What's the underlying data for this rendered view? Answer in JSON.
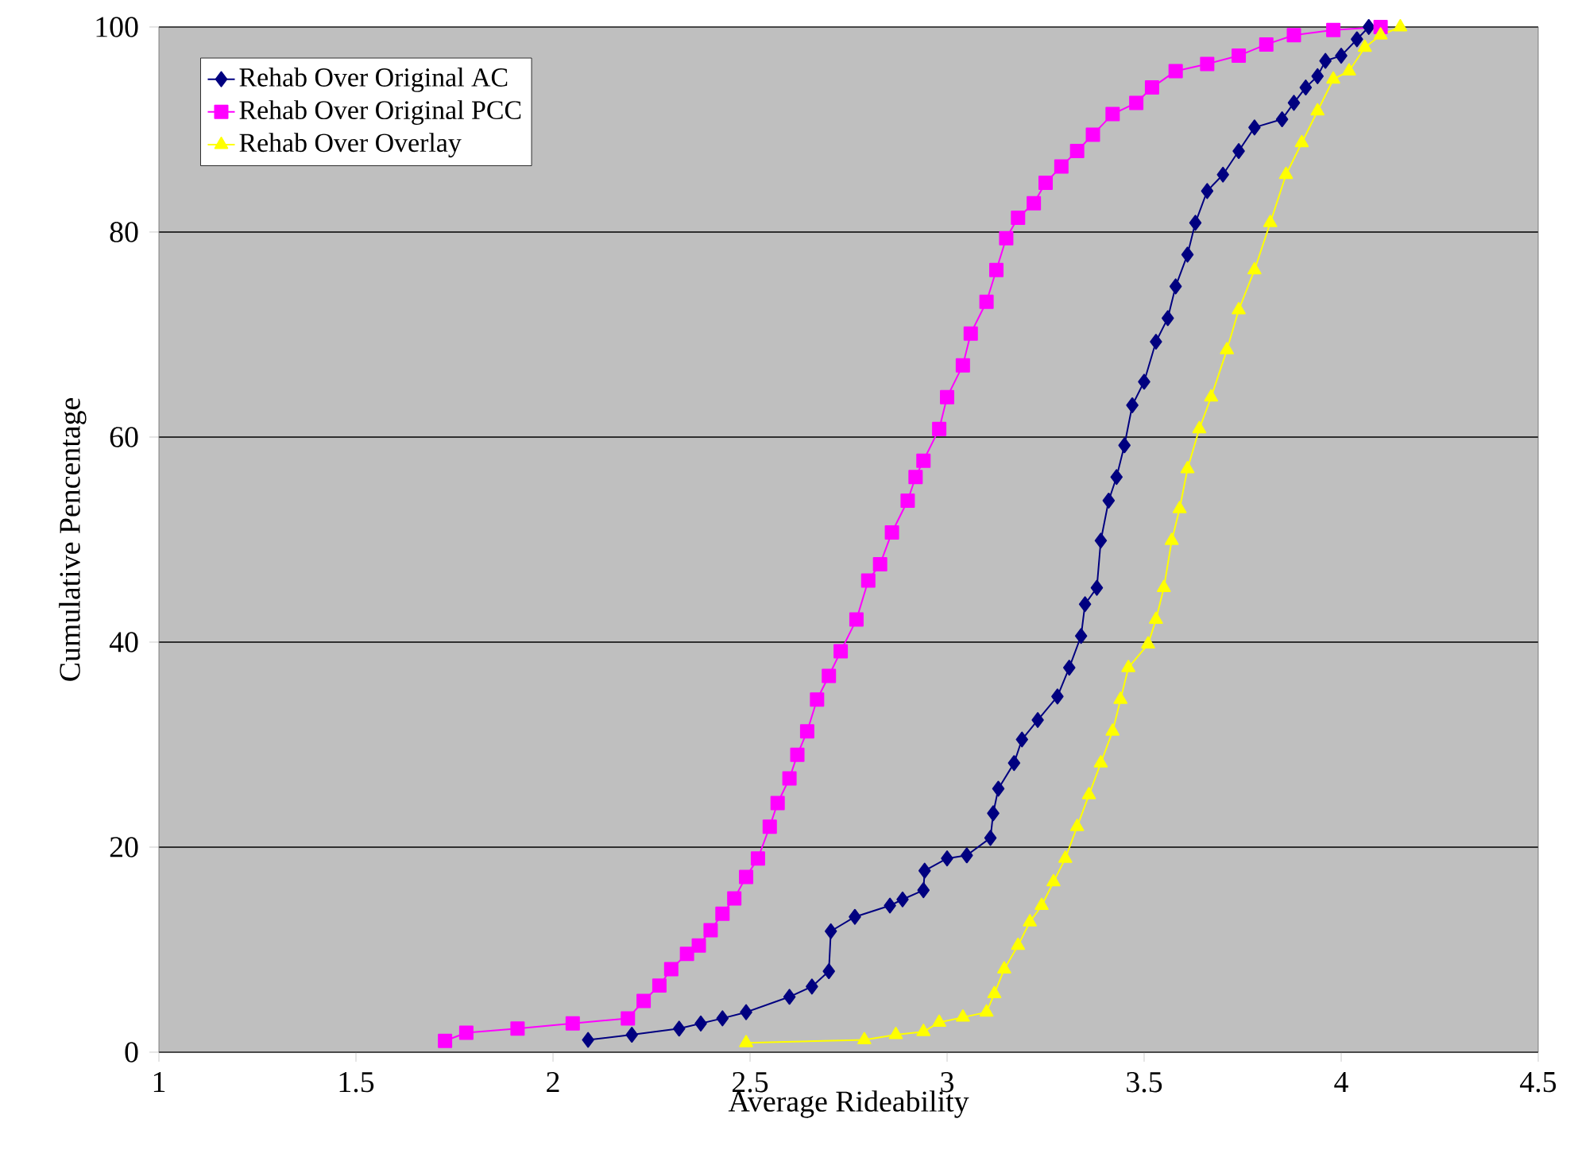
{
  "chart_data": {
    "type": "line",
    "xlabel": "Average Rideability",
    "ylabel": "Cumulative Pencentage",
    "xlim": [
      1,
      4.5
    ],
    "xticks": [
      1,
      1.5,
      2,
      2.5,
      3,
      3.5,
      4,
      4.5
    ],
    "ylim": [
      0,
      100
    ],
    "yticks": [
      0,
      20,
      40,
      60,
      80,
      100
    ],
    "grid": "y",
    "legend": "top left",
    "series": [
      {
        "name": "Rehab Over Original AC",
        "color": "#000080",
        "marker": "diamond",
        "x": [
          2.089,
          2.2,
          2.32,
          2.375,
          2.43,
          2.49,
          2.6,
          2.657,
          2.7,
          2.705,
          2.766,
          2.855,
          2.887,
          2.94,
          2.943,
          3.0,
          3.05,
          3.11,
          3.117,
          3.13,
          3.17,
          3.19,
          3.23,
          3.28,
          3.31,
          3.34,
          3.35,
          3.38,
          3.39,
          3.41,
          3.43,
          3.45,
          3.47,
          3.5,
          3.53,
          3.56,
          3.58,
          3.61,
          3.63,
          3.66,
          3.7,
          3.74,
          3.78,
          3.85,
          3.88,
          3.91,
          3.94,
          3.96,
          4.0,
          4.04,
          4.07
        ],
        "values": [
          1.2,
          1.7,
          2.3,
          2.8,
          3.3,
          3.9,
          5.4,
          6.4,
          7.9,
          11.8,
          13.2,
          14.3,
          14.9,
          15.8,
          17.7,
          18.9,
          19.2,
          20.9,
          23.3,
          25.7,
          28.2,
          30.5,
          32.4,
          34.7,
          37.5,
          40.6,
          43.7,
          45.3,
          49.9,
          53.8,
          56.1,
          59.2,
          63.1,
          65.4,
          69.3,
          71.6,
          74.7,
          77.8,
          80.9,
          84.0,
          85.6,
          87.9,
          90.2,
          91.0,
          92.6,
          94.1,
          95.2,
          96.7,
          97.2,
          98.8,
          100
        ]
      },
      {
        "name": "Rehab Over Original PCC",
        "color": "#ff00ff",
        "marker": "square",
        "x": [
          1.726,
          1.78,
          1.91,
          2.05,
          2.19,
          2.23,
          2.27,
          2.3,
          2.34,
          2.37,
          2.4,
          2.43,
          2.46,
          2.49,
          2.52,
          2.55,
          2.57,
          2.6,
          2.62,
          2.645,
          2.67,
          2.7,
          2.73,
          2.77,
          2.8,
          2.83,
          2.86,
          2.9,
          2.92,
          2.94,
          2.98,
          3.0,
          3.04,
          3.06,
          3.1,
          3.125,
          3.15,
          3.18,
          3.22,
          3.25,
          3.29,
          3.33,
          3.37,
          3.42,
          3.48,
          3.52,
          3.58,
          3.66,
          3.74,
          3.81,
          3.88,
          3.98,
          4.1
        ],
        "values": [
          1.1,
          1.9,
          2.3,
          2.8,
          3.3,
          5.0,
          6.5,
          8.1,
          9.6,
          10.4,
          11.9,
          13.5,
          15.0,
          17.1,
          18.9,
          22.0,
          24.3,
          26.7,
          29.0,
          31.3,
          34.4,
          36.7,
          39.1,
          42.2,
          46.0,
          47.6,
          50.7,
          53.8,
          56.1,
          57.7,
          60.8,
          63.9,
          67.0,
          70.1,
          73.2,
          76.3,
          79.4,
          81.4,
          82.8,
          84.8,
          86.4,
          87.9,
          89.5,
          91.5,
          92.6,
          94.1,
          95.7,
          96.4,
          97.2,
          98.3,
          99.2,
          99.7,
          100
        ]
      },
      {
        "name": "Rehab Over Overlay",
        "color": "#ffff00",
        "marker": "triangle",
        "x": [
          2.49,
          2.79,
          2.87,
          2.94,
          2.98,
          3.04,
          3.1,
          3.12,
          3.145,
          3.18,
          3.21,
          3.24,
          3.27,
          3.3,
          3.33,
          3.36,
          3.39,
          3.42,
          3.44,
          3.46,
          3.51,
          3.53,
          3.55,
          3.57,
          3.59,
          3.61,
          3.64,
          3.67,
          3.71,
          3.74,
          3.78,
          3.82,
          3.86,
          3.9,
          3.94,
          3.98,
          4.02,
          4.06,
          4.1,
          4.15
        ],
        "values": [
          0.9,
          1.2,
          1.7,
          2.0,
          2.9,
          3.4,
          3.9,
          5.7,
          8.1,
          10.4,
          12.7,
          14.3,
          16.6,
          18.9,
          22.0,
          25.1,
          28.2,
          31.3,
          34.4,
          37.5,
          39.8,
          42.2,
          45.3,
          49.9,
          53.0,
          56.9,
          60.8,
          63.9,
          68.5,
          72.4,
          76.3,
          80.9,
          85.6,
          88.7,
          91.8,
          94.9,
          95.7,
          98.0,
          99.2,
          100
        ]
      }
    ]
  }
}
